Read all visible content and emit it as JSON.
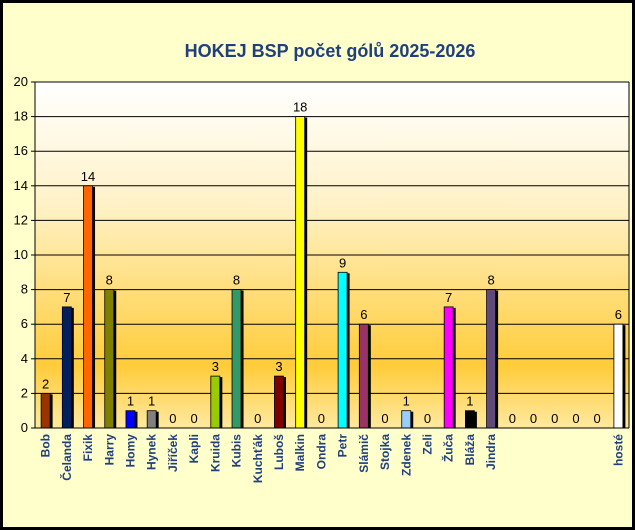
{
  "chart_data": {
    "type": "bar",
    "title": "HOKEJ BSP počet gólů 2025-2026",
    "xlabel": "",
    "ylabel": "",
    "ylim": [
      0,
      20
    ],
    "yticks": [
      0,
      2,
      4,
      6,
      8,
      10,
      12,
      14,
      16,
      18,
      20
    ],
    "grid": true,
    "legend": "none",
    "categories": [
      "Bob",
      "Čelanda",
      "Fixik",
      "Harry",
      "Homy",
      "Hynek",
      "Jiříček",
      "Kapli",
      "Kruida",
      "Kubis",
      "Kuchťák",
      "Luboš",
      "Malkin",
      "Ondra",
      "Petr",
      "Slámič",
      "Stojka",
      "Zdenek",
      "Zeli",
      "Žuča",
      "Bláža",
      "Jindra",
      "",
      "",
      "",
      "",
      "",
      "hosté"
    ],
    "values": [
      2,
      7,
      14,
      8,
      1,
      1,
      0,
      0,
      3,
      8,
      0,
      3,
      18,
      0,
      9,
      6,
      0,
      1,
      0,
      7,
      1,
      8,
      0,
      0,
      0,
      0,
      0,
      6
    ],
    "colors": [
      "#993300",
      "#002060",
      "#ff6600",
      "#808000",
      "#0000ff",
      "#808080",
      "#ffffff",
      "#ffffff",
      "#99cc00",
      "#339966",
      "#ffffff",
      "#800000",
      "#ffff00",
      "#ffffff",
      "#00ffff",
      "#993366",
      "#ffffff",
      "#99ccff",
      "#ffffff",
      "#ff00ff",
      "#000000",
      "#604a7b",
      "#ffffff",
      "#ffffff",
      "#ffffff",
      "#ffffff",
      "#ffffff",
      "#ffffff"
    ]
  }
}
